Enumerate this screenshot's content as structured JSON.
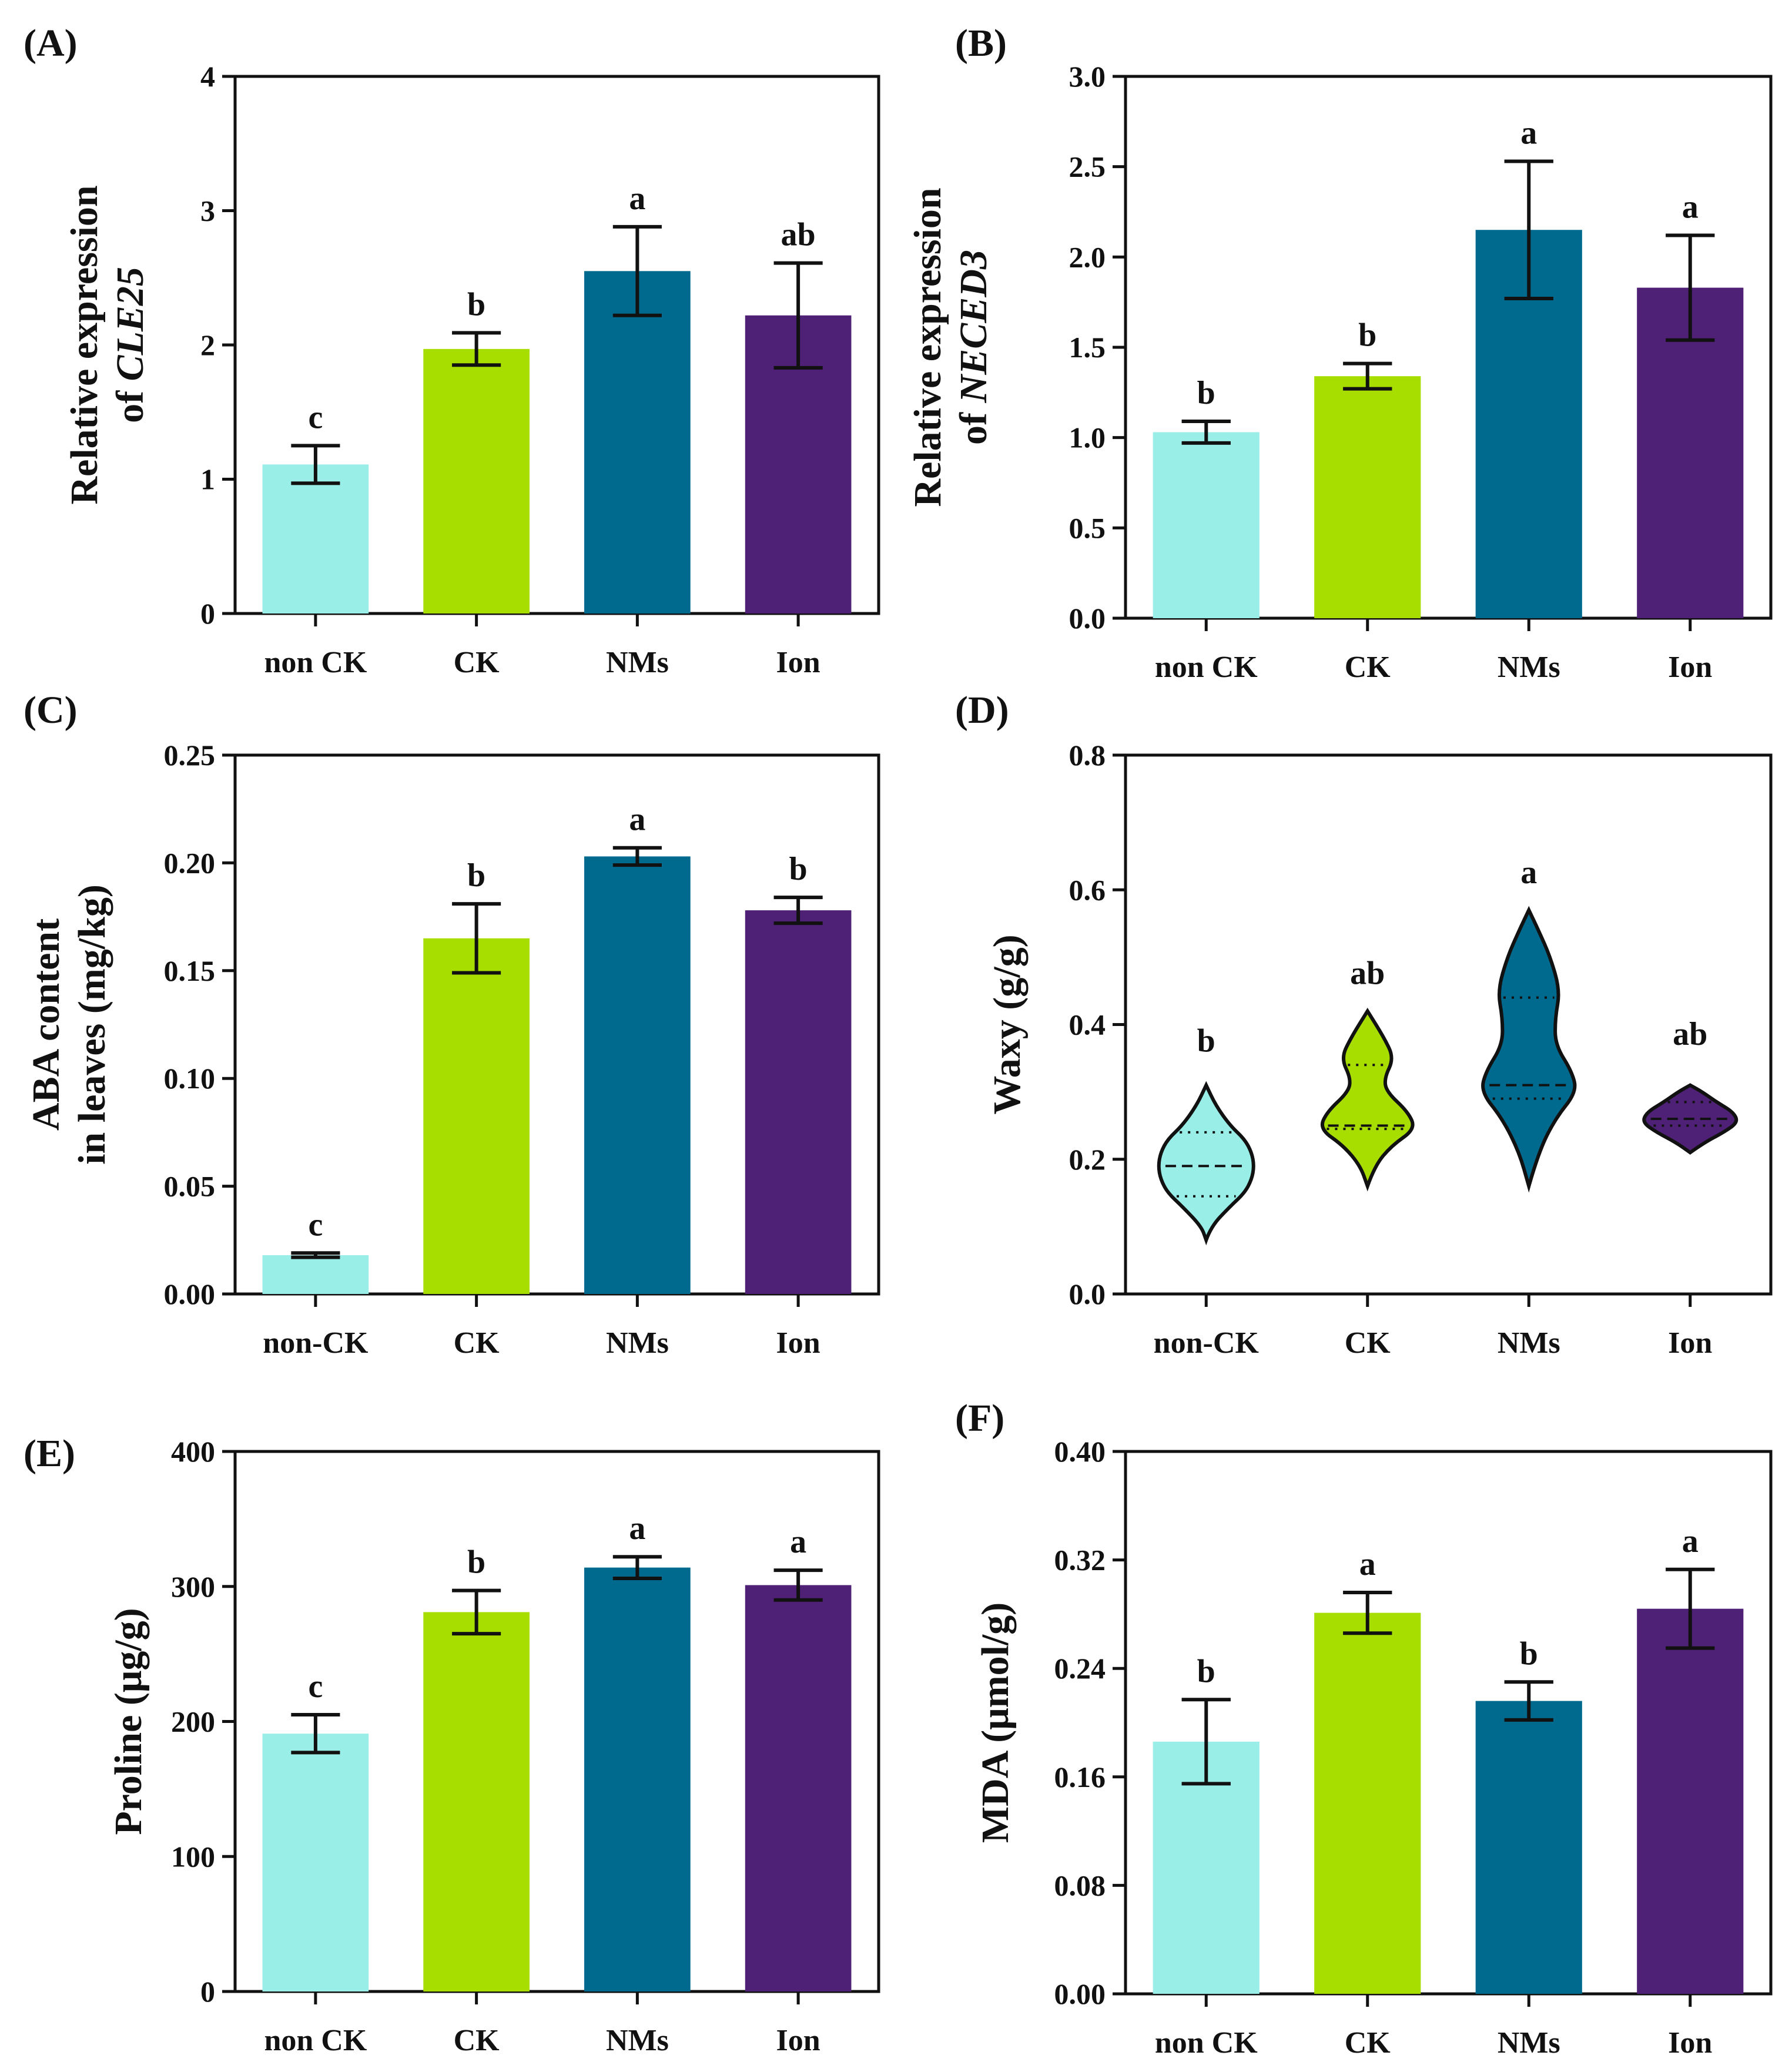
{
  "figure": {
    "colors": {
      "non_ck": "#9aeee8",
      "ck": "#a8dd00",
      "nms": "#006a8e",
      "ion": "#4f2176",
      "axis": "#111111"
    }
  },
  "chart_data": [
    {
      "id": "A",
      "panel_label": "(A)",
      "type": "bar",
      "ylabel_line1": "Relative expression",
      "ylabel_line2_prefix": "of ",
      "ylabel_line2_italic": "CLE25",
      "ylim": [
        0,
        4
      ],
      "yticks": [
        "0",
        "1",
        "2",
        "3",
        "4"
      ],
      "ytick_values": [
        0,
        1,
        2,
        3,
        4
      ],
      "categories": [
        "non CK",
        "CK",
        "NMs",
        "Ion"
      ],
      "values": [
        1.11,
        1.97,
        2.55,
        2.22
      ],
      "errors": [
        0.14,
        0.12,
        0.33,
        0.39
      ],
      "significance": [
        "c",
        "b",
        "a",
        "ab"
      ]
    },
    {
      "id": "B",
      "panel_label": "(B)",
      "type": "bar",
      "ylabel_line1": "Relative expression",
      "ylabel_line2_prefix": "of ",
      "ylabel_line2_italic": "NECED3",
      "ylim": [
        0,
        3
      ],
      "yticks": [
        "0.0",
        "0.5",
        "1.0",
        "1.5",
        "2.0",
        "2.5",
        "3.0"
      ],
      "ytick_values": [
        0,
        0.5,
        1.0,
        1.5,
        2.0,
        2.5,
        3.0
      ],
      "categories": [
        "non CK",
        "CK",
        "NMs",
        "Ion"
      ],
      "values": [
        1.03,
        1.34,
        2.15,
        1.83
      ],
      "errors": [
        0.06,
        0.07,
        0.38,
        0.29
      ],
      "significance": [
        "b",
        "b",
        "a",
        "a"
      ]
    },
    {
      "id": "C",
      "panel_label": "(C)",
      "type": "bar",
      "ylabel_line1": "ABA content",
      "ylabel_line2_prefix": "in leaves (mg/kg)",
      "ylabel_line2_italic": "",
      "ylim": [
        0,
        0.25
      ],
      "yticks": [
        "0.00",
        "0.05",
        "0.10",
        "0.15",
        "0.20",
        "0.25"
      ],
      "ytick_values": [
        0,
        0.05,
        0.1,
        0.15,
        0.2,
        0.25
      ],
      "categories": [
        "non-CK",
        "CK",
        "NMs",
        "Ion"
      ],
      "values": [
        0.018,
        0.165,
        0.203,
        0.178
      ],
      "errors": [
        0.001,
        0.016,
        0.004,
        0.006
      ],
      "significance": [
        "c",
        "b",
        "a",
        "b"
      ]
    },
    {
      "id": "D",
      "panel_label": "(D)",
      "type": "violin",
      "ylabel_line1": "Waxy (g/g)",
      "ylabel_line2_prefix": "",
      "ylabel_line2_italic": "",
      "ylim": [
        0,
        0.8
      ],
      "yticks": [
        "0.0",
        "0.2",
        "0.4",
        "0.6",
        "0.8"
      ],
      "ytick_values": [
        0,
        0.2,
        0.4,
        0.6,
        0.8
      ],
      "categories": [
        "non-CK",
        "CK",
        "NMs",
        "Ion"
      ],
      "violins": [
        {
          "min": 0.08,
          "max": 0.31,
          "median": 0.19,
          "q1": 0.145,
          "q3": 0.24,
          "profile": [
            [
              0.08,
              0
            ],
            [
              0.1,
              0.1
            ],
            [
              0.13,
              0.5
            ],
            [
              0.15,
              0.8
            ],
            [
              0.17,
              0.95
            ],
            [
              0.19,
              1.0
            ],
            [
              0.21,
              0.95
            ],
            [
              0.23,
              0.8
            ],
            [
              0.25,
              0.5
            ],
            [
              0.28,
              0.2
            ],
            [
              0.31,
              0
            ]
          ]
        },
        {
          "min": 0.16,
          "max": 0.42,
          "median": 0.25,
          "q1": 0.245,
          "q3": 0.34,
          "profile": [
            [
              0.16,
              0
            ],
            [
              0.19,
              0.15
            ],
            [
              0.22,
              0.5
            ],
            [
              0.245,
              1.0
            ],
            [
              0.27,
              0.85
            ],
            [
              0.3,
              0.4
            ],
            [
              0.32,
              0.35
            ],
            [
              0.35,
              0.55
            ],
            [
              0.38,
              0.35
            ],
            [
              0.42,
              0
            ]
          ]
        },
        {
          "min": 0.16,
          "max": 0.57,
          "median": 0.31,
          "q1": 0.29,
          "q3": 0.44,
          "profile": [
            [
              0.16,
              0
            ],
            [
              0.21,
              0.2
            ],
            [
              0.26,
              0.55
            ],
            [
              0.3,
              1.0
            ],
            [
              0.33,
              0.9
            ],
            [
              0.37,
              0.55
            ],
            [
              0.41,
              0.55
            ],
            [
              0.45,
              0.65
            ],
            [
              0.5,
              0.45
            ],
            [
              0.54,
              0.2
            ],
            [
              0.57,
              0
            ]
          ]
        },
        {
          "min": 0.21,
          "max": 0.31,
          "median": 0.26,
          "q1": 0.25,
          "q3": 0.285,
          "profile": [
            [
              0.21,
              0
            ],
            [
              0.225,
              0.3
            ],
            [
              0.24,
              0.7
            ],
            [
              0.255,
              1.0
            ],
            [
              0.27,
              0.9
            ],
            [
              0.285,
              0.55
            ],
            [
              0.3,
              0.25
            ],
            [
              0.31,
              0
            ]
          ]
        }
      ],
      "significance": [
        "b",
        "ab",
        "a",
        "ab"
      ],
      "sig_y": [
        0.36,
        0.46,
        0.61,
        0.37
      ]
    },
    {
      "id": "E",
      "panel_label": "(E)",
      "type": "bar",
      "ylabel_line1": "Proline (μg/g)",
      "ylabel_line2_prefix": "",
      "ylabel_line2_italic": "",
      "ylim": [
        0,
        400
      ],
      "yticks": [
        "0",
        "100",
        "200",
        "300",
        "400"
      ],
      "ytick_values": [
        0,
        100,
        200,
        300,
        400
      ],
      "categories": [
        "non CK",
        "CK",
        "NMs",
        "Ion"
      ],
      "values": [
        191,
        281,
        314,
        301
      ],
      "errors": [
        14,
        16,
        8,
        11
      ],
      "significance": [
        "c",
        "b",
        "a",
        "a"
      ]
    },
    {
      "id": "F",
      "panel_label": "(F)",
      "type": "bar",
      "ylabel_line1": "MDA (μmol/g)",
      "ylabel_line2_prefix": "",
      "ylabel_line2_italic": "",
      "ylim": [
        0,
        0.4
      ],
      "yticks": [
        "0.00",
        "0.08",
        "0.16",
        "0.24",
        "0.32",
        "0.40"
      ],
      "ytick_values": [
        0,
        0.08,
        0.16,
        0.24,
        0.32,
        0.4
      ],
      "categories": [
        "non CK",
        "CK",
        "NMs",
        "Ion"
      ],
      "values": [
        0.186,
        0.281,
        0.216,
        0.284
      ],
      "errors": [
        0.031,
        0.015,
        0.014,
        0.029
      ],
      "significance": [
        "b",
        "a",
        "b",
        "a"
      ]
    }
  ]
}
